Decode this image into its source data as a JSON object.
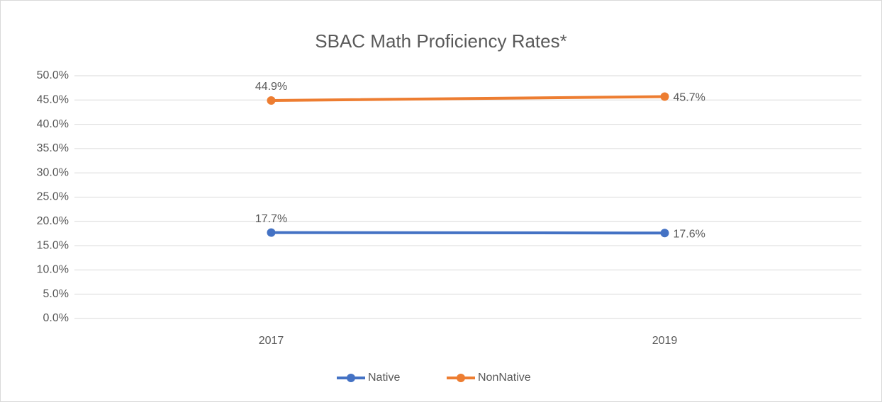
{
  "chart_data": {
    "type": "line",
    "title": "SBAC Math Proficiency Rates*",
    "categories": [
      "2017",
      "2019"
    ],
    "series": [
      {
        "name": "Native",
        "color": "#4472c4",
        "values": [
          17.7,
          17.6
        ],
        "value_labels": [
          "17.7%",
          "17.6%"
        ]
      },
      {
        "name": "NonNative",
        "color": "#ed7d31",
        "values": [
          44.9,
          45.7
        ],
        "value_labels": [
          "44.9%",
          "45.7%"
        ]
      }
    ],
    "ylim": [
      0,
      50
    ],
    "yticks": [
      {
        "value": 0,
        "label": "0.0%"
      },
      {
        "value": 5,
        "label": "5.0%"
      },
      {
        "value": 10,
        "label": "10.0%"
      },
      {
        "value": 15,
        "label": "15.0%"
      },
      {
        "value": 20,
        "label": "20.0%"
      },
      {
        "value": 25,
        "label": "25.0%"
      },
      {
        "value": 30,
        "label": "30.0%"
      },
      {
        "value": 35,
        "label": "35.0%"
      },
      {
        "value": 40,
        "label": "40.0%"
      },
      {
        "value": 45,
        "label": "45.0%"
      },
      {
        "value": 50,
        "label": "50.0%"
      }
    ],
    "grid": true,
    "legend": "bottom"
  }
}
